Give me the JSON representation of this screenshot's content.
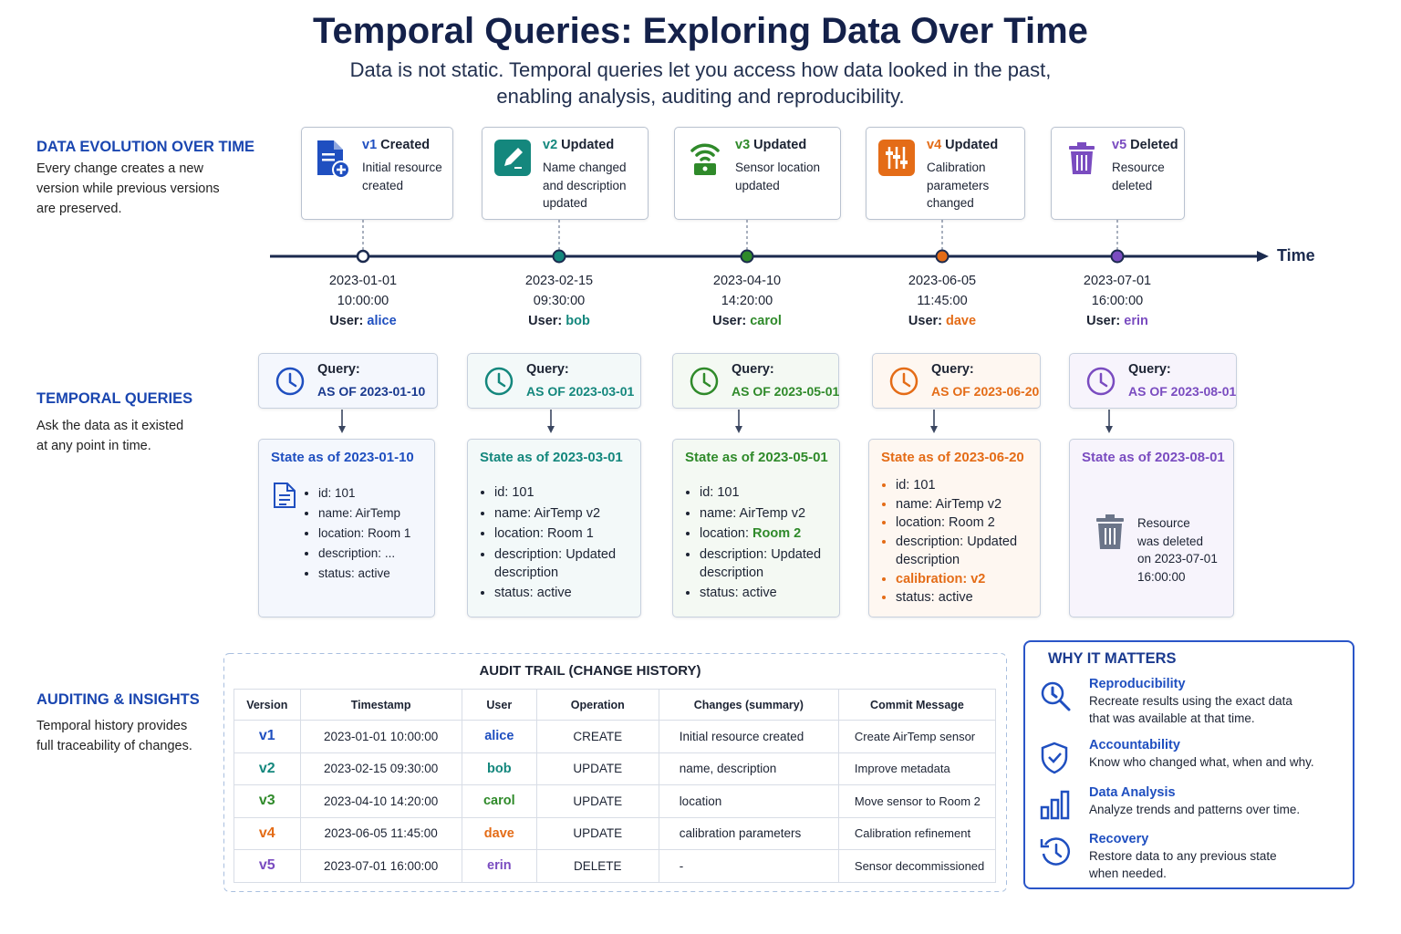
{
  "header": {
    "title": "Temporal Queries: Exploring Data Over Time",
    "subtitle": [
      "Data is not static. Temporal queries let you access how data looked in the past,",
      "enabling analysis, auditing and reproducibility."
    ]
  },
  "sections": {
    "evolution": {
      "title": "DATA EVOLUTION OVER TIME",
      "text": [
        "Every change creates a new",
        "version while previous versions",
        "are preserved."
      ]
    },
    "queries": {
      "title": "TEMPORAL QUERIES",
      "text": [
        "Ask the data as it existed",
        "at any point in time."
      ]
    },
    "auditing": {
      "title": "AUDITING & INSIGHTS",
      "text": [
        "Temporal history provides",
        "full traceability of changes."
      ]
    }
  },
  "timeline": {
    "axis_label": "Time",
    "user_label": "User:",
    "versions": [
      {
        "version": "v1",
        "action": "Created",
        "description": [
          "Initial resource",
          "created"
        ],
        "date": "2023-01-01",
        "time": "10:00:00",
        "user": "alice",
        "color": "#1f4fc0"
      },
      {
        "version": "v2",
        "action": "Updated",
        "description": [
          "Name changed",
          "and description",
          "updated"
        ],
        "date": "2023-02-15",
        "time": "09:30:00",
        "user": "bob",
        "color": "#14877d"
      },
      {
        "version": "v3",
        "action": "Updated",
        "description": [
          "Sensor location",
          "updated"
        ],
        "date": "2023-04-10",
        "time": "14:20:00",
        "user": "carol",
        "color": "#2f8a2a"
      },
      {
        "version": "v4",
        "action": "Updated",
        "description": [
          "Calibration",
          "parameters",
          "changed"
        ],
        "date": "2023-06-05",
        "time": "11:45:00",
        "user": "dave",
        "color": "#e46c17"
      },
      {
        "version": "v5",
        "action": "Deleted",
        "description": [
          "Resource",
          "deleted"
        ],
        "date": "2023-07-01",
        "time": "16:00:00",
        "user": "erin",
        "color": "#7a4cc0"
      }
    ]
  },
  "queries": {
    "label": "Query:",
    "items": [
      {
        "clause": "AS OF 2023-01-10",
        "state_title": "State as of 2023-01-10",
        "fields": [
          {
            "key": "id:",
            "value": "101"
          },
          {
            "key": "name:",
            "value": "AirTemp"
          },
          {
            "key": "location:",
            "value": "Room 1"
          },
          {
            "key": "description:",
            "value": "..."
          },
          {
            "key": "status:",
            "value": "active"
          }
        ]
      },
      {
        "clause": "AS OF 2023-03-01",
        "state_title": "State as of 2023-03-01",
        "fields": [
          {
            "key": "id:",
            "value": "101"
          },
          {
            "key": "name:",
            "value": "AirTemp v2"
          },
          {
            "key": "location:",
            "value": "Room 1"
          },
          {
            "key": "description:",
            "value": "Updated description"
          },
          {
            "key": "status:",
            "value": "active"
          }
        ]
      },
      {
        "clause": "AS OF 2023-05-01",
        "state_title": "State as of 2023-05-01",
        "fields": [
          {
            "key": "id:",
            "value": "101"
          },
          {
            "key": "name:",
            "value": "AirTemp v2"
          },
          {
            "key": "location:",
            "value": "Room 2",
            "highlight": "value"
          },
          {
            "key": "description:",
            "value": "Updated description"
          },
          {
            "key": "status:",
            "value": "active"
          }
        ]
      },
      {
        "clause": "AS OF 2023-06-20",
        "state_title": "State as of 2023-06-20",
        "bullet_color": "#e46c17",
        "fields": [
          {
            "key": "id:",
            "value": "101"
          },
          {
            "key": "name:",
            "value": "AirTemp v2"
          },
          {
            "key": "location:",
            "value": "Room 2"
          },
          {
            "key": "description:",
            "value": "Updated description"
          },
          {
            "key": "calibration:",
            "value": "v2",
            "highlight": "line"
          },
          {
            "key": "status:",
            "value": "active"
          }
        ]
      },
      {
        "clause": "AS OF 2023-08-01",
        "state_title": "State as of 2023-08-01",
        "deleted_note": [
          "Resource",
          "was deleted",
          "on 2023-07-01",
          "16:00:00"
        ]
      }
    ]
  },
  "audit": {
    "title": "AUDIT TRAIL (CHANGE HISTORY)",
    "headers": [
      "Version",
      "Timestamp",
      "User",
      "Operation",
      "Changes (summary)",
      "Commit Message"
    ],
    "rows": [
      [
        "v1",
        "2023-01-01 10:00:00",
        "alice",
        "CREATE",
        "Initial resource created",
        "Create AirTemp sensor"
      ],
      [
        "v2",
        "2023-02-15 09:30:00",
        "bob",
        "UPDATE",
        "name, description",
        "Improve metadata"
      ],
      [
        "v3",
        "2023-04-10 14:20:00",
        "carol",
        "UPDATE",
        "location",
        "Move sensor to Room 2"
      ],
      [
        "v4",
        "2023-06-05 11:45:00",
        "dave",
        "UPDATE",
        "calibration parameters",
        "Calibration refinement"
      ],
      [
        "v5",
        "2023-07-01 16:00:00",
        "erin",
        "DELETE",
        "-",
        "Sensor decommissioned"
      ]
    ]
  },
  "why": {
    "title": "WHY IT MATTERS",
    "items": [
      {
        "title": "Reproducibility",
        "text": [
          "Recreate results using the exact data",
          "that was available at that time."
        ]
      },
      {
        "title": "Accountability",
        "text": [
          "Know who changed what, when and why."
        ]
      },
      {
        "title": "Data Analysis",
        "text": [
          "Analyze trends and patterns over time."
        ]
      },
      {
        "title": "Recovery",
        "text": [
          "Restore data to any previous state",
          "when needed."
        ]
      }
    ]
  }
}
